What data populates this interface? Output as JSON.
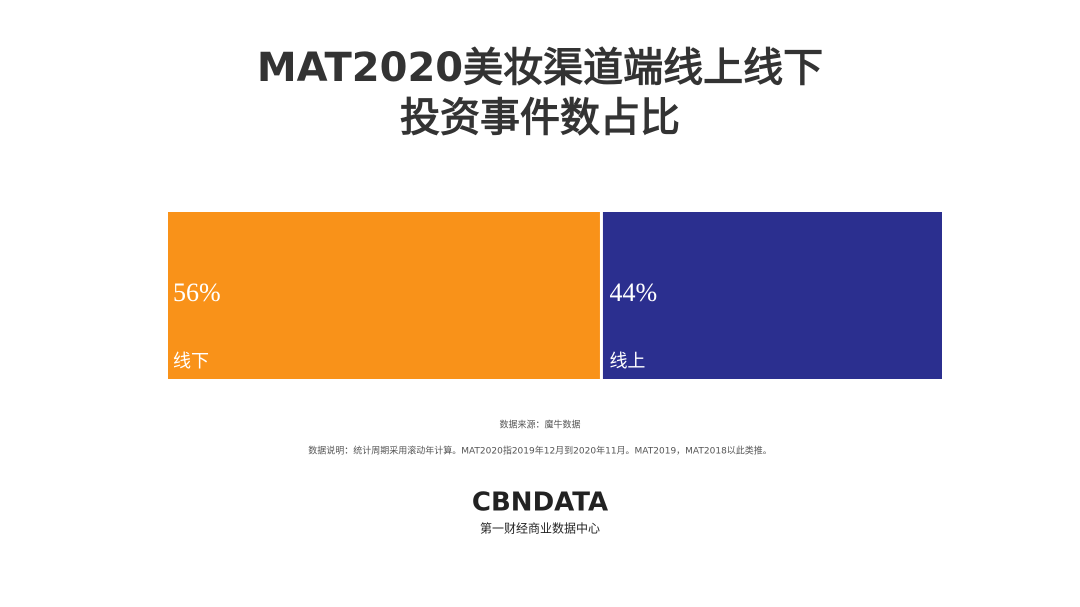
{
  "chart_data": {
    "type": "bar",
    "orientation": "horizontal",
    "stacked": true,
    "title": [
      "MAT2020美妆渠道端线上线下",
      "投资事件数占比"
    ],
    "categories": [
      null
    ],
    "series": [
      {
        "name": "线下",
        "color": "#f99219",
        "values": [
          56
        ],
        "value_labels": [
          "56%"
        ]
      },
      {
        "name": "线上",
        "color": "#2b2f8f",
        "values": [
          44
        ],
        "value_labels": [
          "44%"
        ]
      }
    ],
    "xlim": [
      0,
      100
    ],
    "source": "数据来源：魔牛数据",
    "note": "数据说明：统计周期采用滚动年计算。MAT2020指2019年12月到2020年11月。MAT2019，MAT2018以此类推。"
  },
  "logo": {
    "name": "CBNDATA",
    "tagline": "第一财经商业数据中心"
  }
}
